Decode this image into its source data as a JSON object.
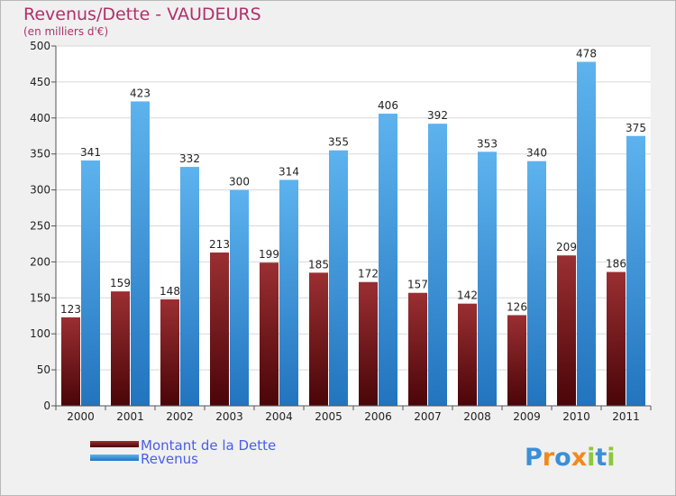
{
  "chart_data": {
    "type": "bar",
    "title": "Revenus/Dette - VAUDEURS",
    "subtitle": "(en milliers d'€)",
    "categories": [
      "2000",
      "2001",
      "2002",
      "2003",
      "2004",
      "2005",
      "2006",
      "2007",
      "2008",
      "2009",
      "2010",
      "2011"
    ],
    "series": [
      {
        "name": "Montant de la Dette",
        "values": [
          123,
          159,
          148,
          213,
          199,
          185,
          172,
          157,
          142,
          126,
          209,
          186
        ]
      },
      {
        "name": "Revenus",
        "values": [
          341,
          423,
          332,
          300,
          314,
          355,
          406,
          392,
          353,
          340,
          478,
          375
        ]
      }
    ],
    "ylim": [
      0,
      500
    ],
    "yticks": [
      0,
      50,
      100,
      150,
      200,
      250,
      300,
      350,
      400,
      450,
      500
    ],
    "grid": true,
    "legend_position": "bottom-left",
    "colors": {
      "debt": "#7a1e22",
      "revenue": "#4aa3e8",
      "title": "#b0306a",
      "legend_text": "#4a5de8"
    }
  },
  "logo": {
    "text": "Proxiti"
  }
}
